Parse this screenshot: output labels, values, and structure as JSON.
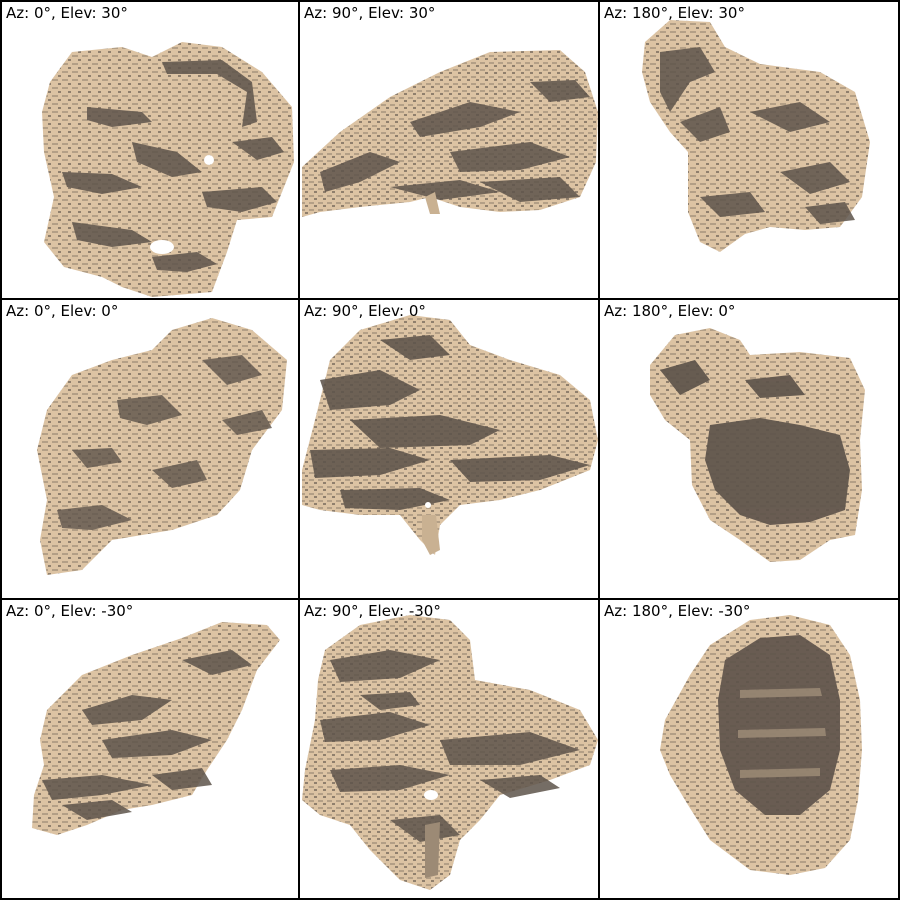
{
  "views": [
    {
      "azimuth": 0,
      "elevation": 30,
      "label": "Az: 0°, Elev: 30°"
    },
    {
      "azimuth": 90,
      "elevation": 30,
      "label": "Az: 90°, Elev: 30°"
    },
    {
      "azimuth": 180,
      "elevation": 30,
      "label": "Az: 180°, Elev: 30°"
    },
    {
      "azimuth": 0,
      "elevation": 0,
      "label": "Az: 0°, Elev: 0°"
    },
    {
      "azimuth": 90,
      "elevation": 0,
      "label": "Az: 90°, Elev: 0°"
    },
    {
      "azimuth": 180,
      "elevation": 0,
      "label": "Az: 180°, Elev: 0°"
    },
    {
      "azimuth": 0,
      "elevation": -30,
      "label": "Az: 0°, Elev: -30°"
    },
    {
      "azimuth": 90,
      "elevation": -30,
      "label": "Az: 90°, Elev: -30°"
    },
    {
      "azimuth": 180,
      "elevation": -30,
      "label": "Az: 180°, Elev: -30°"
    }
  ],
  "colors": {
    "surface": "#dcc3a3",
    "shadow": "#5e544b",
    "mid": "#b39f86",
    "border": "#000000",
    "background": "#ffffff"
  }
}
